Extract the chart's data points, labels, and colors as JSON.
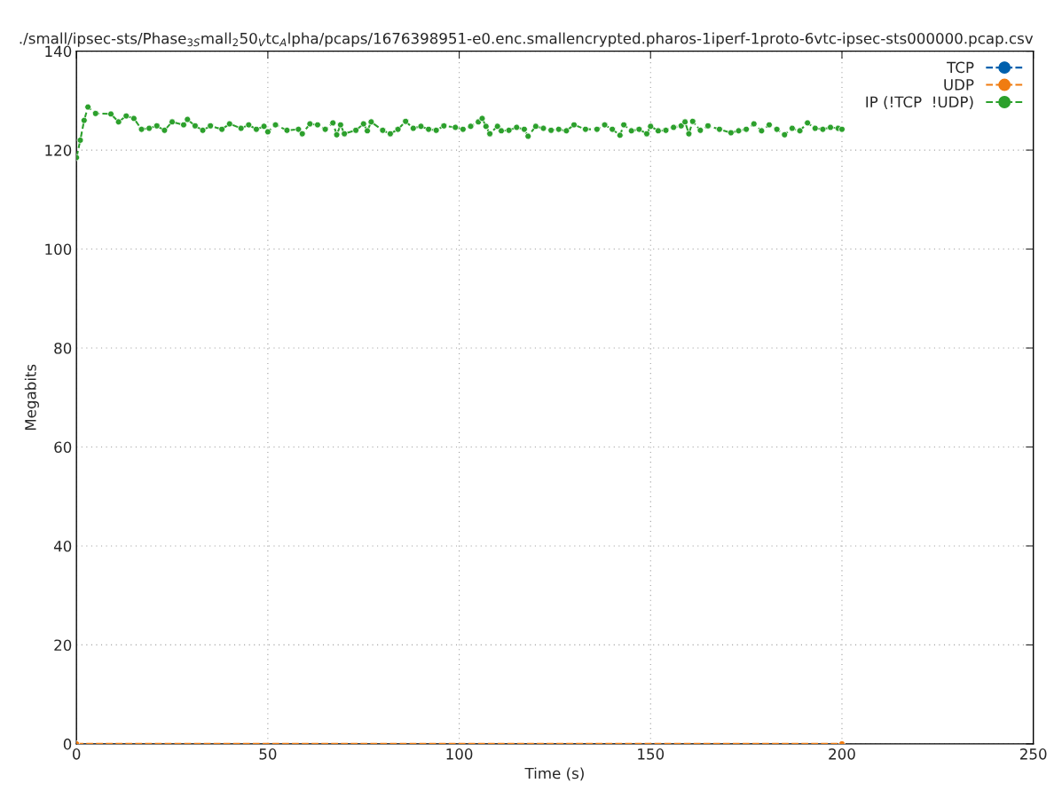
{
  "chart_data": {
    "type": "line",
    "title": "./small/ipsec-sts/Phase$_{3S}$mall$_{2}$50$_{V}$tc$_{A}$lpha/pcaps/1676398951-e0.enc.smallencrypted.pharos-1iperf-1proto-6vtc-ipsec-sts000000.pcap.csv",
    "xlabel": "Time (s)",
    "ylabel": "Megabits",
    "xlim": [
      0,
      250
    ],
    "xticks": [
      0,
      50,
      100,
      150,
      200,
      250
    ],
    "ylim": [
      0,
      140
    ],
    "yticks": [
      0,
      20,
      40,
      60,
      80,
      100,
      120,
      140
    ],
    "grid": true,
    "legend": "top right",
    "marker": "circle",
    "line_style": "dashed",
    "series": [
      {
        "name": "TCP",
        "color": "#0060ad"
      },
      {
        "name": "UDP",
        "color": "#f07c11",
        "x": [
          0,
          200
        ],
        "values": [
          0,
          0
        ]
      },
      {
        "name": "IP (!TCP  !UDP)",
        "color": "#2ca02c",
        "x": [
          0,
          1,
          2,
          3,
          5,
          9,
          11,
          13,
          15,
          17,
          19,
          21,
          23,
          25,
          28,
          29,
          31,
          33,
          35,
          38,
          40,
          43,
          45,
          47,
          49,
          50,
          52,
          55,
          58,
          59,
          61,
          63,
          65,
          67,
          68,
          69,
          70,
          73,
          75,
          76,
          77,
          80,
          82,
          84,
          86,
          88,
          90,
          92,
          94,
          96,
          99,
          101,
          103,
          105,
          106,
          107,
          108,
          110,
          111,
          113,
          115,
          117,
          118,
          120,
          122,
          124,
          126,
          128,
          130,
          133,
          136,
          138,
          140,
          142,
          143,
          145,
          147,
          149,
          150,
          152,
          154,
          156,
          158,
          159,
          160,
          161,
          163,
          165,
          168,
          171,
          173,
          175,
          177,
          179,
          181,
          183,
          185,
          187,
          189,
          191,
          193,
          195,
          197,
          199,
          200
        ],
        "values": [
          118.5,
          122,
          126,
          128.7,
          127.4,
          127.3,
          125.7,
          126.9,
          126.4,
          124.2,
          124.4,
          124.9,
          124.0,
          125.7,
          125.1,
          126.2,
          124.9,
          124.0,
          124.9,
          124.2,
          125.3,
          124.4,
          125.1,
          124.2,
          124.8,
          123.7,
          125.1,
          124.0,
          124.2,
          123.3,
          125.3,
          125.1,
          124.2,
          125.5,
          123.1,
          125.1,
          123.3,
          124.0,
          125.3,
          123.9,
          125.7,
          124.0,
          123.3,
          124.2,
          125.8,
          124.4,
          124.8,
          124.2,
          124.0,
          124.9,
          124.6,
          124.2,
          124.8,
          125.7,
          126.4,
          124.8,
          123.3,
          124.8,
          123.9,
          124.0,
          124.6,
          124.2,
          122.8,
          124.8,
          124.4,
          124.0,
          124.2,
          123.9,
          125.1,
          124.2,
          124.2,
          125.1,
          124.2,
          123.0,
          125.1,
          123.9,
          124.2,
          123.3,
          124.8,
          123.9,
          124.0,
          124.6,
          124.9,
          125.7,
          123.3,
          125.8,
          124.0,
          124.9,
          124.2,
          123.5,
          123.9,
          124.2,
          125.3,
          123.9,
          125.1,
          124.2,
          123.1,
          124.4,
          123.9,
          125.5,
          124.4,
          124.2,
          124.6,
          124.4,
          124.2
        ]
      }
    ]
  }
}
